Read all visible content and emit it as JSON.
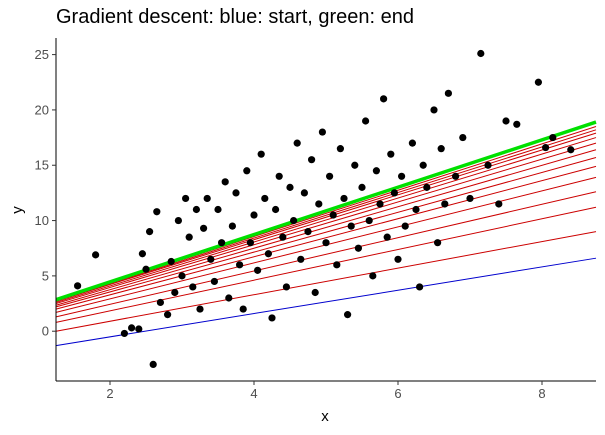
{
  "chart_data": {
    "type": "scatter",
    "title": "Gradient descent: blue: start, green: end",
    "xlabel": "x",
    "ylabel": "y",
    "xlim": [
      1.25,
      8.75
    ],
    "ylim": [
      -4.5,
      26.5
    ],
    "x_ticks": [
      2,
      4,
      6,
      8
    ],
    "y_ticks": [
      0,
      5,
      10,
      15,
      20,
      25
    ],
    "grid": false,
    "colors": {
      "points": "#000000",
      "start_line": "#0000cd",
      "intermediate_lines": "#cc0000",
      "end_line": "#00e000",
      "axis": "#000000"
    },
    "points": [
      [
        1.55,
        4.1
      ],
      [
        1.8,
        6.9
      ],
      [
        2.2,
        -0.2
      ],
      [
        2.3,
        0.3
      ],
      [
        2.4,
        0.2
      ],
      [
        2.45,
        7.0
      ],
      [
        2.5,
        5.6
      ],
      [
        2.55,
        9.0
      ],
      [
        2.6,
        -3.0
      ],
      [
        2.65,
        10.8
      ],
      [
        2.7,
        2.6
      ],
      [
        2.8,
        1.5
      ],
      [
        2.85,
        6.3
      ],
      [
        2.9,
        3.5
      ],
      [
        2.95,
        10.0
      ],
      [
        3.0,
        5.0
      ],
      [
        3.05,
        12.0
      ],
      [
        3.1,
        8.5
      ],
      [
        3.15,
        4.0
      ],
      [
        3.2,
        11.0
      ],
      [
        3.25,
        2.0
      ],
      [
        3.3,
        9.3
      ],
      [
        3.35,
        12.0
      ],
      [
        3.4,
        6.5
      ],
      [
        3.45,
        4.5
      ],
      [
        3.5,
        11.0
      ],
      [
        3.55,
        8.0
      ],
      [
        3.6,
        13.5
      ],
      [
        3.65,
        3.0
      ],
      [
        3.7,
        9.5
      ],
      [
        3.75,
        12.5
      ],
      [
        3.8,
        6.0
      ],
      [
        3.85,
        2.0
      ],
      [
        3.9,
        14.5
      ],
      [
        3.95,
        8.0
      ],
      [
        4.0,
        10.5
      ],
      [
        4.05,
        5.5
      ],
      [
        4.1,
        16.0
      ],
      [
        4.15,
        12.0
      ],
      [
        4.2,
        7.0
      ],
      [
        4.25,
        1.2
      ],
      [
        4.3,
        11.0
      ],
      [
        4.35,
        14.0
      ],
      [
        4.4,
        8.5
      ],
      [
        4.45,
        4.0
      ],
      [
        4.5,
        13.0
      ],
      [
        4.55,
        10.0
      ],
      [
        4.6,
        17.0
      ],
      [
        4.65,
        6.5
      ],
      [
        4.7,
        12.5
      ],
      [
        4.75,
        9.0
      ],
      [
        4.8,
        15.5
      ],
      [
        4.85,
        3.5
      ],
      [
        4.9,
        11.5
      ],
      [
        4.95,
        18.0
      ],
      [
        5.0,
        8.0
      ],
      [
        5.05,
        14.0
      ],
      [
        5.1,
        10.5
      ],
      [
        5.15,
        6.0
      ],
      [
        5.2,
        16.5
      ],
      [
        5.25,
        12.0
      ],
      [
        5.3,
        1.5
      ],
      [
        5.35,
        9.5
      ],
      [
        5.4,
        15.0
      ],
      [
        5.45,
        7.5
      ],
      [
        5.5,
        13.0
      ],
      [
        5.55,
        19.0
      ],
      [
        5.6,
        10.0
      ],
      [
        5.65,
        5.0
      ],
      [
        5.7,
        14.5
      ],
      [
        5.75,
        11.5
      ],
      [
        5.8,
        21.0
      ],
      [
        5.85,
        8.5
      ],
      [
        5.9,
        16.0
      ],
      [
        5.95,
        12.5
      ],
      [
        6.0,
        6.5
      ],
      [
        6.05,
        14.0
      ],
      [
        6.1,
        9.5
      ],
      [
        6.2,
        17.0
      ],
      [
        6.25,
        11.0
      ],
      [
        6.3,
        4.0
      ],
      [
        6.35,
        15.0
      ],
      [
        6.4,
        13.0
      ],
      [
        6.5,
        20.0
      ],
      [
        6.55,
        8.0
      ],
      [
        6.6,
        16.5
      ],
      [
        6.65,
        11.5
      ],
      [
        6.7,
        21.5
      ],
      [
        6.8,
        14.0
      ],
      [
        6.9,
        17.5
      ],
      [
        7.0,
        12.0
      ],
      [
        7.15,
        25.1
      ],
      [
        7.25,
        15.0
      ],
      [
        7.4,
        11.5
      ],
      [
        7.5,
        19.0
      ],
      [
        7.65,
        18.7
      ],
      [
        7.95,
        22.5
      ],
      [
        8.05,
        16.6
      ],
      [
        8.15,
        17.5
      ],
      [
        8.4,
        16.4
      ]
    ],
    "lines": [
      {
        "role": "start",
        "x0": 1.25,
        "y0": -1.3,
        "x1": 8.75,
        "y1": 6.6
      },
      {
        "role": "intermediate",
        "x0": 1.25,
        "y0": 0.0,
        "x1": 8.75,
        "y1": 9.0
      },
      {
        "role": "intermediate",
        "x0": 1.25,
        "y0": 0.8,
        "x1": 8.75,
        "y1": 11.2
      },
      {
        "role": "intermediate",
        "x0": 1.25,
        "y0": 1.3,
        "x1": 8.75,
        "y1": 12.6
      },
      {
        "role": "intermediate",
        "x0": 1.25,
        "y0": 1.7,
        "x1": 8.75,
        "y1": 13.9
      },
      {
        "role": "intermediate",
        "x0": 1.25,
        "y0": 2.0,
        "x1": 8.75,
        "y1": 14.9
      },
      {
        "role": "intermediate",
        "x0": 1.25,
        "y0": 2.2,
        "x1": 8.75,
        "y1": 15.7
      },
      {
        "role": "intermediate",
        "x0": 1.25,
        "y0": 2.35,
        "x1": 8.75,
        "y1": 16.4
      },
      {
        "role": "intermediate",
        "x0": 1.25,
        "y0": 2.5,
        "x1": 8.75,
        "y1": 17.0
      },
      {
        "role": "intermediate",
        "x0": 1.25,
        "y0": 2.6,
        "x1": 8.75,
        "y1": 17.5
      },
      {
        "role": "intermediate",
        "x0": 1.25,
        "y0": 2.7,
        "x1": 8.75,
        "y1": 17.9
      },
      {
        "role": "intermediate",
        "x0": 1.25,
        "y0": 2.75,
        "x1": 8.75,
        "y1": 18.2
      },
      {
        "role": "intermediate",
        "x0": 1.25,
        "y0": 2.8,
        "x1": 8.75,
        "y1": 18.5
      },
      {
        "role": "end",
        "x0": 1.25,
        "y0": 2.85,
        "x1": 8.75,
        "y1": 18.9
      }
    ]
  }
}
